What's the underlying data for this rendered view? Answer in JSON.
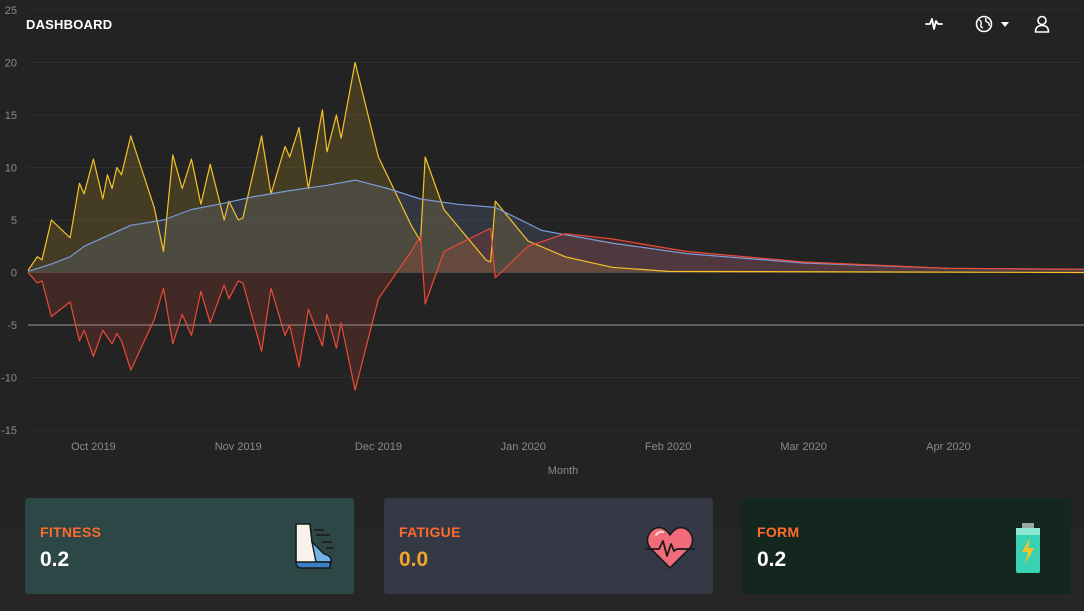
{
  "header": {
    "title": "DASHBOARD",
    "icons": [
      "activity-icon",
      "globe-icon",
      "chevron-down-icon",
      "user-icon"
    ]
  },
  "cards": {
    "fitness": {
      "label": "FITNESS",
      "value": "0.2",
      "icon": "running-shoe-icon",
      "value_color": "#ffffff"
    },
    "fatigue": {
      "label": "FATIGUE",
      "value": "0.0",
      "icon": "heart-pulse-icon",
      "value_color": "#f2a52a"
    },
    "form": {
      "label": "FORM",
      "value": "0.2",
      "icon": "battery-icon",
      "value_color": "#ffffff"
    }
  },
  "chart_data": {
    "type": "area",
    "xlabel": "Month",
    "ylim": [
      -15,
      25
    ],
    "yticks": [
      -15,
      -10,
      -5,
      0,
      5,
      10,
      15,
      20,
      25
    ],
    "reference_line": -5,
    "x_ticks": [
      {
        "label": "Oct 2019",
        "date": "2019-10-01"
      },
      {
        "label": "Nov 2019",
        "date": "2019-11-01"
      },
      {
        "label": "Dec 2019",
        "date": "2019-12-01"
      },
      {
        "label": "Jan 2020",
        "date": "2020-01-01"
      },
      {
        "label": "Feb 2020",
        "date": "2020-02-01"
      },
      {
        "label": "Mar 2020",
        "date": "2020-03-01"
      },
      {
        "label": "Apr 2020",
        "date": "2020-04-01"
      }
    ],
    "series": [
      {
        "color": "#f5c228",
        "points": [
          [
            "2019-09-17",
            0.2
          ],
          [
            "2019-09-19",
            1.5
          ],
          [
            "2019-09-20",
            1.2
          ],
          [
            "2019-09-22",
            5.0
          ],
          [
            "2019-09-26",
            3.3
          ],
          [
            "2019-09-28",
            8.5
          ],
          [
            "2019-09-29",
            7.5
          ],
          [
            "2019-10-01",
            10.8
          ],
          [
            "2019-10-03",
            7.0
          ],
          [
            "2019-10-04",
            9.3
          ],
          [
            "2019-10-05",
            8.0
          ],
          [
            "2019-10-06",
            10.0
          ],
          [
            "2019-10-07",
            9.3
          ],
          [
            "2019-10-09",
            13.0
          ],
          [
            "2019-10-14",
            6.2
          ],
          [
            "2019-10-16",
            2.0
          ],
          [
            "2019-10-18",
            11.2
          ],
          [
            "2019-10-20",
            8.0
          ],
          [
            "2019-10-22",
            10.8
          ],
          [
            "2019-10-24",
            6.5
          ],
          [
            "2019-10-26",
            10.3
          ],
          [
            "2019-10-29",
            5.0
          ],
          [
            "2019-10-30",
            6.8
          ],
          [
            "2019-11-01",
            5.0
          ],
          [
            "2019-11-02",
            5.2
          ],
          [
            "2019-11-06",
            13.0
          ],
          [
            "2019-11-08",
            7.5
          ],
          [
            "2019-11-11",
            12.0
          ],
          [
            "2019-11-12",
            11.0
          ],
          [
            "2019-11-14",
            13.8
          ],
          [
            "2019-11-16",
            8.0
          ],
          [
            "2019-11-19",
            15.5
          ],
          [
            "2019-11-20",
            11.5
          ],
          [
            "2019-11-22",
            15.0
          ],
          [
            "2019-11-23",
            12.8
          ],
          [
            "2019-11-26",
            20.0
          ],
          [
            "2019-12-01",
            11.0
          ],
          [
            "2019-12-08",
            4.5
          ],
          [
            "2019-12-10",
            3.0
          ],
          [
            "2019-12-11",
            11.0
          ],
          [
            "2019-12-15",
            6.0
          ],
          [
            "2019-12-24",
            1.2
          ],
          [
            "2019-12-25",
            1.0
          ],
          [
            "2019-12-26",
            6.8
          ],
          [
            "2020-01-02",
            3.0
          ],
          [
            "2020-01-10",
            1.5
          ],
          [
            "2020-01-20",
            0.5
          ],
          [
            "2020-02-01",
            0.1
          ],
          [
            "2020-04-30",
            0.0
          ]
        ]
      },
      {
        "color": "#7b9ad8",
        "points": [
          [
            "2019-09-17",
            0.1
          ],
          [
            "2019-09-22",
            0.8
          ],
          [
            "2019-09-26",
            1.5
          ],
          [
            "2019-09-29",
            2.5
          ],
          [
            "2019-10-04",
            3.5
          ],
          [
            "2019-10-09",
            4.5
          ],
          [
            "2019-10-16",
            5.0
          ],
          [
            "2019-10-22",
            6.0
          ],
          [
            "2019-10-29",
            6.6
          ],
          [
            "2019-11-04",
            7.2
          ],
          [
            "2019-11-12",
            7.8
          ],
          [
            "2019-11-20",
            8.3
          ],
          [
            "2019-11-26",
            8.8
          ],
          [
            "2019-12-03",
            8.0
          ],
          [
            "2019-12-10",
            7.0
          ],
          [
            "2019-12-18",
            6.5
          ],
          [
            "2019-12-26",
            6.2
          ],
          [
            "2020-01-05",
            4.0
          ],
          [
            "2020-01-20",
            2.8
          ],
          [
            "2020-02-05",
            1.8
          ],
          [
            "2020-03-01",
            0.9
          ],
          [
            "2020-04-01",
            0.4
          ],
          [
            "2020-04-30",
            0.3
          ]
        ]
      },
      {
        "color": "#ea4a36",
        "points": [
          [
            "2019-09-17",
            0.0
          ],
          [
            "2019-09-19",
            -1.0
          ],
          [
            "2019-09-20",
            -0.8
          ],
          [
            "2019-09-22",
            -4.2
          ],
          [
            "2019-09-26",
            -2.8
          ],
          [
            "2019-09-28",
            -6.5
          ],
          [
            "2019-09-29",
            -5.5
          ],
          [
            "2019-10-01",
            -8.0
          ],
          [
            "2019-10-03",
            -5.5
          ],
          [
            "2019-10-05",
            -6.8
          ],
          [
            "2019-10-06",
            -5.8
          ],
          [
            "2019-10-07",
            -6.5
          ],
          [
            "2019-10-09",
            -9.3
          ],
          [
            "2019-10-14",
            -4.5
          ],
          [
            "2019-10-16",
            -1.5
          ],
          [
            "2019-10-18",
            -6.8
          ],
          [
            "2019-10-20",
            -4.0
          ],
          [
            "2019-10-22",
            -6.0
          ],
          [
            "2019-10-24",
            -1.8
          ],
          [
            "2019-10-26",
            -4.8
          ],
          [
            "2019-10-29",
            -1.2
          ],
          [
            "2019-10-30",
            -2.5
          ],
          [
            "2019-11-01",
            -0.8
          ],
          [
            "2019-11-02",
            -1.0
          ],
          [
            "2019-11-06",
            -7.5
          ],
          [
            "2019-11-08",
            -1.5
          ],
          [
            "2019-11-11",
            -6.0
          ],
          [
            "2019-11-12",
            -5.0
          ],
          [
            "2019-11-14",
            -9.0
          ],
          [
            "2019-11-16",
            -3.5
          ],
          [
            "2019-11-19",
            -7.0
          ],
          [
            "2019-11-20",
            -4.0
          ],
          [
            "2019-11-22",
            -7.2
          ],
          [
            "2019-11-23",
            -4.8
          ],
          [
            "2019-11-26",
            -11.2
          ],
          [
            "2019-12-01",
            -2.5
          ],
          [
            "2019-12-08",
            2.0
          ],
          [
            "2019-12-10",
            3.5
          ],
          [
            "2019-12-11",
            -3.0
          ],
          [
            "2019-12-15",
            2.0
          ],
          [
            "2019-12-24",
            4.0
          ],
          [
            "2019-12-25",
            4.2
          ],
          [
            "2019-12-26",
            -0.5
          ],
          [
            "2020-01-02",
            2.5
          ],
          [
            "2020-01-10",
            3.7
          ],
          [
            "2020-01-20",
            3.2
          ],
          [
            "2020-02-05",
            2.0
          ],
          [
            "2020-03-01",
            1.0
          ],
          [
            "2020-04-01",
            0.4
          ],
          [
            "2020-04-30",
            0.3
          ]
        ]
      }
    ]
  }
}
